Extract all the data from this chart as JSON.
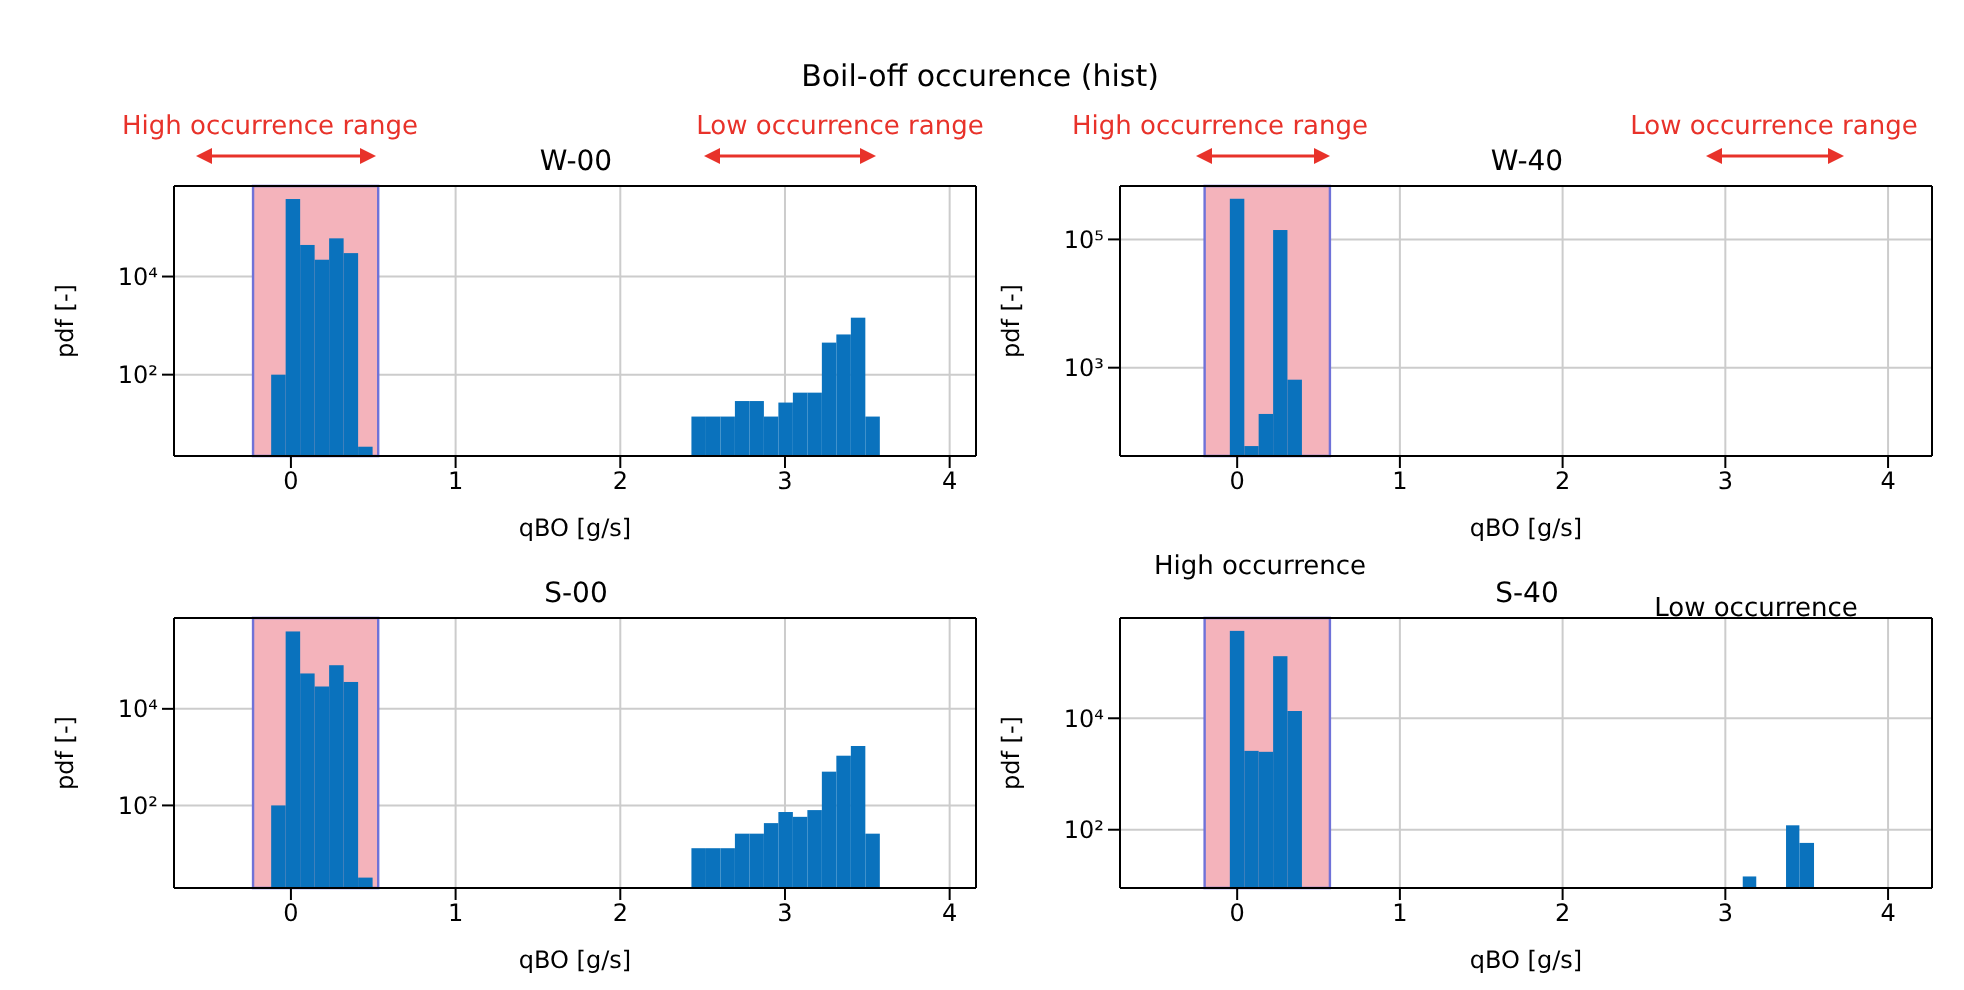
{
  "chart_data": [
    {
      "type": "histogram",
      "title": "W-00",
      "xlabel": "qBO [g/s]",
      "ylabel": "pdf [-]",
      "annotations": [
        "Boil-off occurence (hist)",
        "High occurrence range",
        "Low occurrence range"
      ],
      "bins": [
        -0.12,
        -0.032,
        0.056,
        0.144,
        0.232,
        0.32,
        0.408,
        0.496,
        2.432,
        2.52,
        2.608,
        2.696,
        2.784,
        2.872,
        2.96,
        3.048,
        3.136,
        3.224,
        3.312,
        3.4,
        3.488,
        3.576
      ],
      "values": [
        100,
        380000,
        44000,
        22000,
        60000,
        30000,
        3.4,
        null,
        14,
        14,
        14,
        29,
        29,
        14,
        27,
        43,
        43,
        450,
        660,
        1450,
        14
      ],
      "color": "#0a72bd",
      "log": true,
      "grid": true,
      "xlim": [
        -0.71,
        4.16
      ],
      "xticks": [
        0,
        1,
        2,
        3,
        4
      ],
      "ylim": [
        2.2,
        700000
      ],
      "yticks": [
        {
          "value": 100,
          "label": "10²"
        },
        {
          "value": 10000,
          "label": "10⁴"
        }
      ],
      "bands": [
        {
          "axis": "x",
          "from": -0.23,
          "to": 0.53,
          "color": "#f4b3bb"
        }
      ]
    },
    {
      "type": "histogram",
      "title": "W-40",
      "xlabel": "qBO [g/s]",
      "ylabel": "pdf [-]",
      "annotations": [
        "High occurrence range",
        "Low occurrence range"
      ],
      "bins": [
        -0.045,
        0.044,
        0.132,
        0.221,
        0.309,
        0.398
      ],
      "values": [
        430000,
        60,
        190,
        140000,
        650
      ],
      "color": "#0a72bd",
      "log": true,
      "grid": true,
      "xlim": [
        -0.72,
        4.27
      ],
      "xticks": [
        0,
        1,
        2,
        3,
        4
      ],
      "ylim": [
        42,
        680000
      ],
      "yticks": [
        {
          "value": 1000,
          "label": "10³"
        },
        {
          "value": 100000,
          "label": "10⁵"
        }
      ],
      "bands": [
        {
          "axis": "x",
          "from": -0.2,
          "to": 0.57,
          "color": "#f4b3bb"
        }
      ]
    },
    {
      "type": "histogram",
      "title": "S-00",
      "xlabel": "qBO [g/s]",
      "ylabel": "pdf [-]",
      "bins": [
        -0.12,
        -0.032,
        0.056,
        0.144,
        0.232,
        0.32,
        0.408,
        0.496,
        2.432,
        2.52,
        2.608,
        2.696,
        2.784,
        2.872,
        2.96,
        3.048,
        3.136,
        3.224,
        3.312,
        3.4,
        3.488,
        3.576
      ],
      "values": [
        100,
        400000,
        54000,
        29000,
        80000,
        36000,
        3.2,
        null,
        13,
        13,
        13,
        26,
        26,
        43,
        73,
        58,
        80,
        500,
        1070,
        1700,
        26
      ],
      "color": "#0a72bd",
      "log": true,
      "grid": true,
      "xlim": [
        -0.71,
        4.16
      ],
      "xticks": [
        0,
        1,
        2,
        3,
        4
      ],
      "ylim": [
        1.95,
        760000
      ],
      "yticks": [
        {
          "value": 100,
          "label": "10²"
        },
        {
          "value": 10000,
          "label": "10⁴"
        }
      ],
      "bands": [
        {
          "axis": "x",
          "from": -0.23,
          "to": 0.53,
          "color": "#f4b3bb"
        }
      ]
    },
    {
      "type": "histogram",
      "title": "S-40",
      "xlabel": "qBO [g/s]",
      "ylabel": "pdf [-]",
      "annotations": [
        "High occurrence",
        "Low occurrence"
      ],
      "bins": [
        -0.045,
        0.044,
        0.132,
        0.221,
        0.309,
        0.398,
        3.107,
        3.19,
        3.373,
        3.455,
        3.545
      ],
      "values": [
        370000,
        2600,
        2500,
        130000,
        13500,
        null,
        14.5,
        null,
        120,
        58
      ],
      "color": "#0a72bd",
      "log": true,
      "grid": true,
      "xlim": [
        -0.72,
        4.27
      ],
      "xticks": [
        0,
        1,
        2,
        3,
        4
      ],
      "ylim": [
        9,
        630000
      ],
      "yticks": [
        {
          "value": 100,
          "label": "10²"
        },
        {
          "value": 10000,
          "label": "10⁴"
        }
      ],
      "bands": [
        {
          "axis": "x",
          "from": -0.2,
          "to": 0.57,
          "color": "#f4b3bb"
        }
      ]
    }
  ]
}
